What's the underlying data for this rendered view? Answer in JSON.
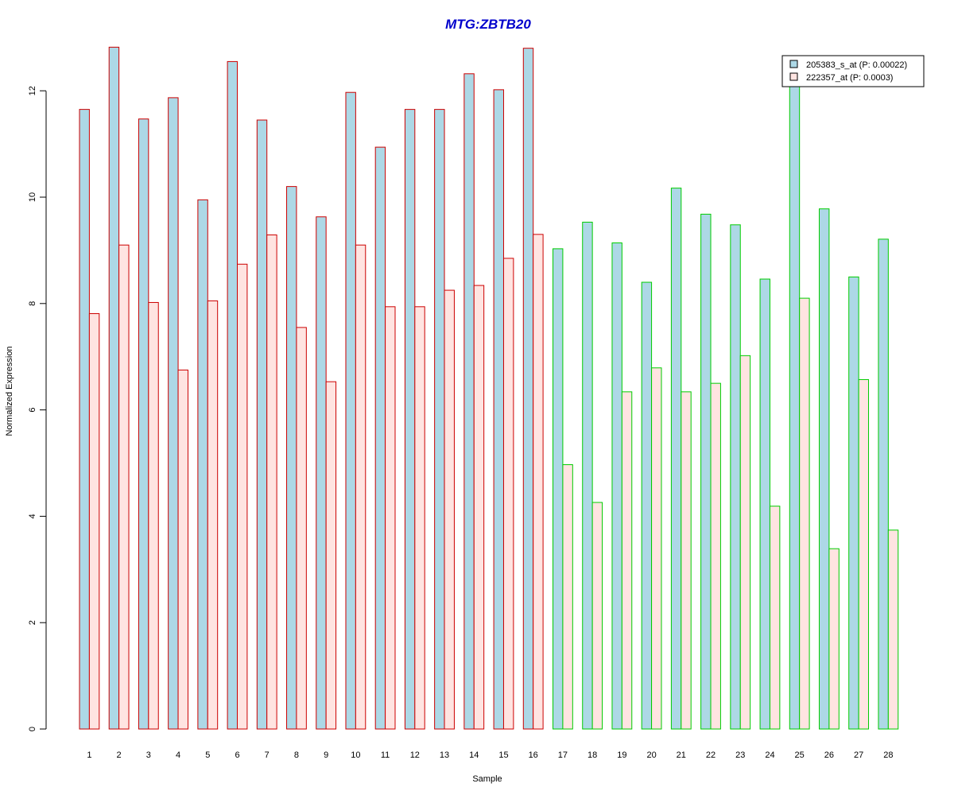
{
  "chart_data": {
    "type": "bar",
    "title": "MTG:ZBTB20",
    "xlabel": "Sample",
    "ylabel": "Normalized Expression",
    "ylim": [
      0,
      12.8
    ],
    "y_ticks": [
      0,
      2,
      4,
      6,
      8,
      10,
      12
    ],
    "grid": false,
    "legend_position": "top-right",
    "categories": [
      "1",
      "2",
      "3",
      "4",
      "5",
      "6",
      "7",
      "8",
      "9",
      "10",
      "11",
      "12",
      "13",
      "14",
      "15",
      "16",
      "17",
      "18",
      "19",
      "20",
      "21",
      "22",
      "23",
      "24",
      "25",
      "26",
      "27",
      "28"
    ],
    "group_border_colors": [
      "#cc0000",
      "#cc0000",
      "#cc0000",
      "#cc0000",
      "#cc0000",
      "#cc0000",
      "#cc0000",
      "#cc0000",
      "#cc0000",
      "#cc0000",
      "#cc0000",
      "#cc0000",
      "#cc0000",
      "#cc0000",
      "#cc0000",
      "#cc0000",
      "#00cc00",
      "#00cc00",
      "#00cc00",
      "#00cc00",
      "#00cc00",
      "#00cc00",
      "#00cc00",
      "#00cc00",
      "#00cc00",
      "#00cc00",
      "#00cc00",
      "#00cc00"
    ],
    "series": [
      {
        "name": "205383_s_at (P: 0.00022)",
        "fill": "#add8e6",
        "values": [
          11.65,
          12.82,
          11.47,
          11.87,
          9.95,
          12.55,
          11.45,
          10.2,
          9.63,
          11.97,
          10.94,
          11.65,
          11.65,
          12.32,
          12.02,
          12.8,
          9.03,
          9.53,
          9.14,
          8.4,
          10.17,
          9.68,
          9.48,
          8.46,
          12.15,
          9.78,
          8.5,
          9.21
        ]
      },
      {
        "name": "222357_at (P: 0.0003)",
        "fill": "#ffe4e1",
        "values": [
          7.81,
          9.1,
          8.02,
          6.75,
          8.05,
          8.74,
          9.29,
          7.55,
          6.53,
          9.1,
          7.94,
          7.94,
          8.25,
          8.34,
          8.85,
          9.3,
          4.97,
          4.26,
          6.34,
          6.79,
          6.34,
          6.5,
          7.02,
          4.19,
          8.1,
          3.39,
          6.57,
          3.74
        ]
      }
    ]
  }
}
